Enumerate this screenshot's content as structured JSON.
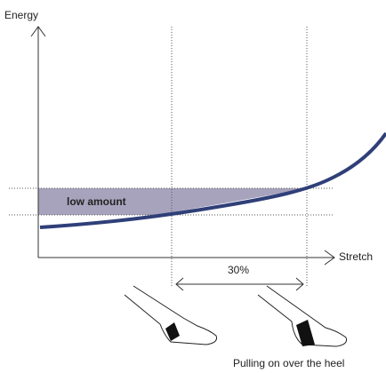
{
  "axes": {
    "y_label": "Energy",
    "x_label": "Stretch"
  },
  "region_label": "low amount",
  "span_label": "30%",
  "caption": "Pulling on over the heel"
}
